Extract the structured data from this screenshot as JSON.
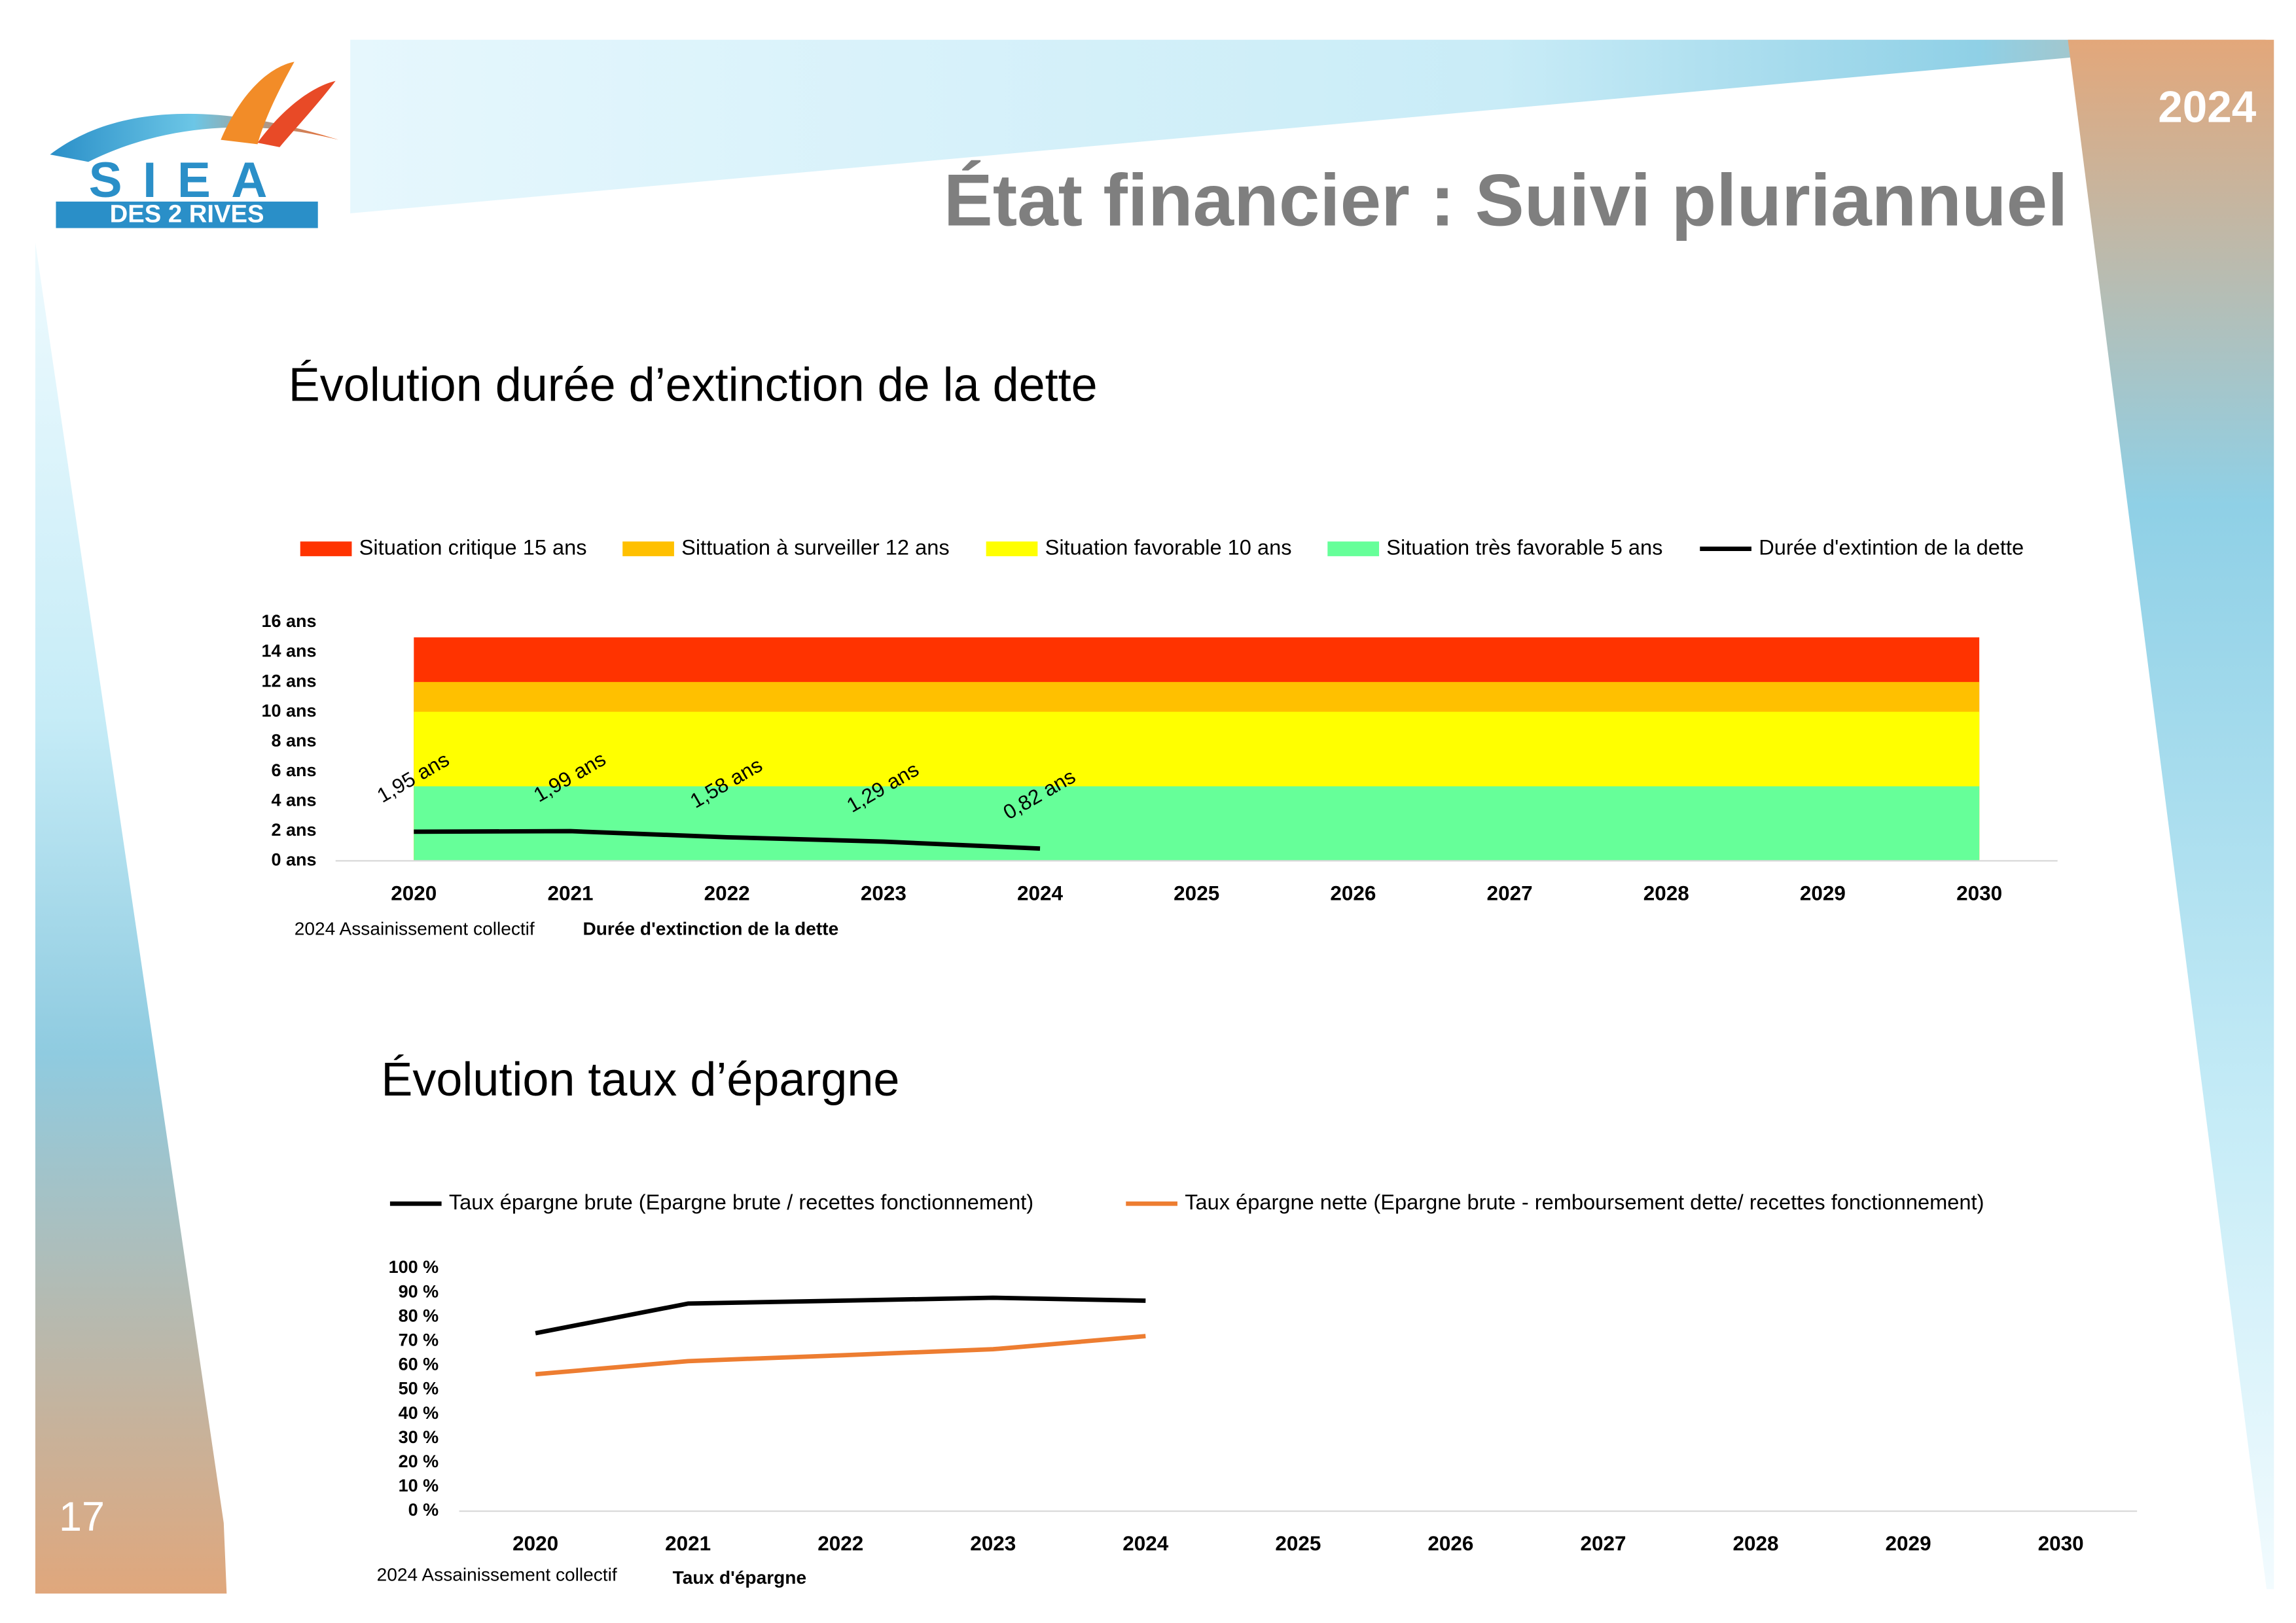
{
  "logo": {
    "line1": "SIEA",
    "line2": "DES 2 RIVES"
  },
  "year": "2024",
  "title": "État financier : Suivi pluriannuel",
  "page_number": "17",
  "chart_data": [
    {
      "type": "area",
      "title": "Évolution durée d’extinction de la dette",
      "categories": [
        "2020",
        "2021",
        "2022",
        "2023",
        "2024",
        "2025",
        "2026",
        "2027",
        "2028",
        "2029",
        "2030"
      ],
      "series": [
        {
          "name": "Situation critique 15 ans",
          "color": "#ff3300",
          "kind": "area",
          "values": [
            15,
            15,
            15,
            15,
            15,
            15,
            15,
            15,
            15,
            15,
            15
          ]
        },
        {
          "name": "Sittuation à surveiller 12 ans",
          "color": "#ffc000",
          "kind": "area",
          "values": [
            12,
            12,
            12,
            12,
            12,
            12,
            12,
            12,
            12,
            12,
            12
          ]
        },
        {
          "name": "Situation favorable 10 ans",
          "color": "#ffff00",
          "kind": "area",
          "values": [
            10,
            10,
            10,
            10,
            10,
            10,
            10,
            10,
            10,
            10,
            10
          ]
        },
        {
          "name": "Situation très favorable 5 ans",
          "color": "#66ff99",
          "kind": "area",
          "values": [
            5,
            5,
            5,
            5,
            5,
            5,
            5,
            5,
            5,
            5,
            5
          ]
        },
        {
          "name": "Durée d'extintion de la dette",
          "color": "#000000",
          "kind": "line",
          "values": [
            1.95,
            1.99,
            1.58,
            1.29,
            0.82,
            null,
            null,
            null,
            null,
            null,
            null
          ],
          "value_labels": [
            "1,95 ans",
            "1,99 ans",
            "1,58 ans",
            "1,29 ans",
            "0,82 ans",
            null,
            null,
            null,
            null,
            null,
            null
          ]
        }
      ],
      "ylim": [
        0,
        16
      ],
      "yticks": [
        {
          "value": 0,
          "label": "0 ans"
        },
        {
          "value": 2,
          "label": "2 ans"
        },
        {
          "value": 4,
          "label": "4 ans"
        },
        {
          "value": 6,
          "label": "6 ans"
        },
        {
          "value": 8,
          "label": "8 ans"
        },
        {
          "value": 10,
          "label": "10 ans"
        },
        {
          "value": 12,
          "label": "12 ans"
        },
        {
          "value": 14,
          "label": "14 ans"
        },
        {
          "value": 16,
          "label": "16 ans"
        }
      ],
      "grid": false,
      "legend": "top",
      "footer": [
        "2024 Assainissement collectif",
        "Durée d'extinction de la dette"
      ]
    },
    {
      "type": "line",
      "title": "Évolution taux d’épargne",
      "categories": [
        "2020",
        "2021",
        "2022",
        "2023",
        "2024",
        "2025",
        "2026",
        "2027",
        "2028",
        "2029",
        "2030"
      ],
      "series": [
        {
          "name": "Taux épargne brute (Epargne brute / recettes fonctionnement)",
          "color": "#000000",
          "values": [
            73.3,
            85.5,
            86.7,
            87.9,
            86.7,
            null,
            null,
            null,
            null,
            null,
            null
          ]
        },
        {
          "name": "Taux épargne nette (Epargne brute - remboursement dette/ recettes fonctionnement)",
          "color": "#ed7d31",
          "values": [
            56.4,
            61.8,
            64.2,
            66.7,
            72.1,
            null,
            null,
            null,
            null,
            null,
            null
          ]
        }
      ],
      "ylim": [
        0,
        100
      ],
      "yticks": [
        {
          "value": 0,
          "label": "0 %"
        },
        {
          "value": 10,
          "label": "10 %"
        },
        {
          "value": 20,
          "label": "20 %"
        },
        {
          "value": 30,
          "label": "30 %"
        },
        {
          "value": 40,
          "label": "40 %"
        },
        {
          "value": 50,
          "label": "50 %"
        },
        {
          "value": 60,
          "label": "60 %"
        },
        {
          "value": 70,
          "label": "70 %"
        },
        {
          "value": 80,
          "label": "80 %"
        },
        {
          "value": 90,
          "label": "90 %"
        },
        {
          "value": 100,
          "label": "100 %"
        }
      ],
      "grid": false,
      "legend": "top",
      "footer": [
        "2024 Assainissement collectif",
        "Taux d'épargne"
      ]
    }
  ]
}
